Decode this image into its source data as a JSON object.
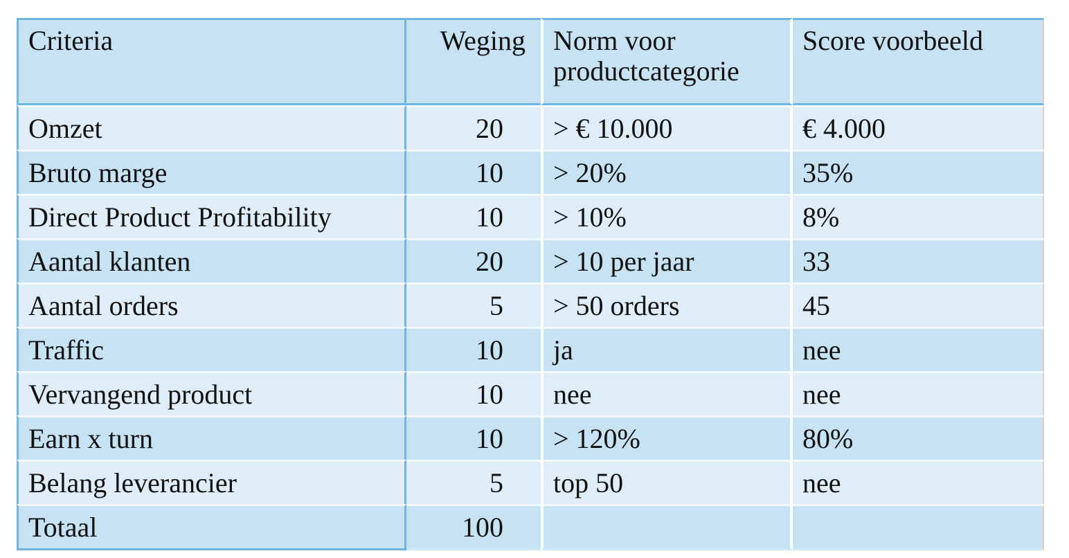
{
  "table": {
    "headers": {
      "criteria": "Criteria",
      "weging": "Weging",
      "norm": "Norm voor productcategorie",
      "score": "Score voorbeeld"
    },
    "rows": [
      {
        "criteria": "Omzet",
        "weging": "20",
        "norm": "> € 10.000",
        "score": "€ 4.000"
      },
      {
        "criteria": "Bruto marge",
        "weging": "10",
        "norm": "> 20%",
        "score": "35%"
      },
      {
        "criteria": "Direct Product Profitability",
        "weging": "10",
        "norm": "> 10%",
        "score": "8%"
      },
      {
        "criteria": "Aantal klanten",
        "weging": "20",
        "norm": "> 10 per jaar",
        "score": "33"
      },
      {
        "criteria": "Aantal orders",
        "weging": "5",
        "norm": "> 50 orders",
        "score": "45"
      },
      {
        "criteria": "Traffic",
        "weging": "10",
        "norm": "ja",
        "score": "nee"
      },
      {
        "criteria": "Vervangend product",
        "weging": "10",
        "norm": "nee",
        "score": "nee"
      },
      {
        "criteria": "Earn x turn",
        "weging": "10",
        "norm": "> 120%",
        "score": "80%"
      },
      {
        "criteria": "Belang leverancier",
        "weging": "5",
        "norm": "top 50",
        "score": "nee"
      },
      {
        "criteria": "Totaal",
        "weging": "100",
        "norm": "",
        "score": ""
      }
    ]
  },
  "colors": {
    "header_bg": "#c7e3f3",
    "row_dark": "#c7e3f3",
    "row_light": "#deedf8",
    "border_blue": "#6fb5df"
  }
}
